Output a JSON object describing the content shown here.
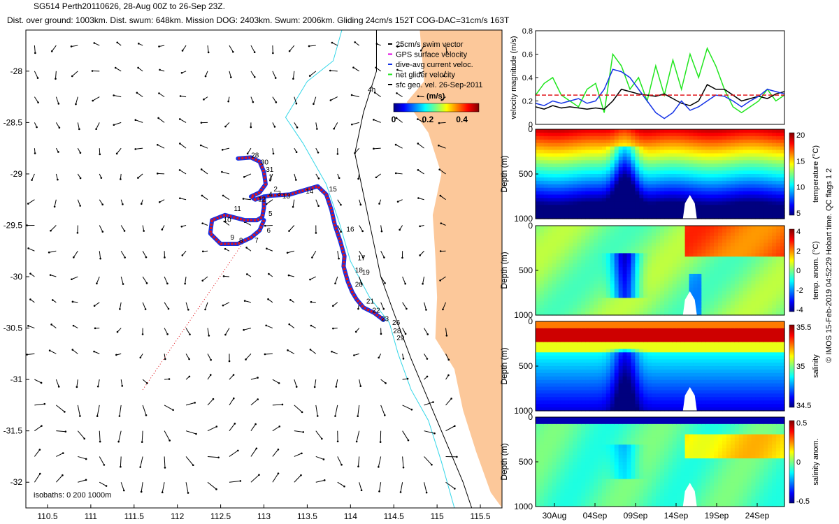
{
  "header": {
    "line1": "SG514 Perth20110626, 28-Aug 00Z to 26-Sep 23Z.",
    "line2": "Dist. over ground: 1003km. Dist. swum: 648km. Mission DOG: 2403km. Swum: 2006km. Gliding 24cm/s 152T COG-DAC=31cm/s 163T"
  },
  "credit": "© IMOS 15-Feb-2019 04:52:29 Hobart time. QC flags 1 2",
  "colors": {
    "land": "#fcc89a",
    "shelf": "#32d6e8",
    "red": "#e0141a",
    "blue": "#1432e6",
    "green": "#20e61e"
  },
  "chart_data": [
    {
      "type": "scatter",
      "panel": "map",
      "xlim": [
        110.25,
        115.75
      ],
      "ylim": [
        -32.25,
        -27.6
      ],
      "xticks": [
        "110.5",
        "111",
        "111.5",
        "112",
        "112.5",
        "113",
        "113.5",
        "114",
        "114.5",
        "115",
        "115.5"
      ],
      "yticks": [
        "-28",
        "-28.5",
        "-29",
        "-29.5",
        "-30",
        "-30.5",
        "-31",
        "-31.5",
        "-32"
      ],
      "legend": [
        "25cm/s swim vector",
        "GPS surface velocity",
        "dive-avg current veloc.",
        "net glider velocity",
        "sfc geo. vel. 26-Sep-2011"
      ],
      "colorbar": {
        "title": "(m/s)",
        "ticks": [
          "0",
          "0.2",
          "0.4"
        ],
        "range": [
          0,
          0.5
        ]
      },
      "isobath_label": "isobaths: 0   200  1000m",
      "annotation": "4h",
      "track": [
        [
          112.7,
          -28.85
        ],
        [
          112.85,
          -28.84
        ],
        [
          112.95,
          -28.88
        ],
        [
          113.0,
          -28.98
        ],
        [
          113.02,
          -29.1
        ],
        [
          112.95,
          -29.18
        ],
        [
          112.85,
          -29.22
        ],
        [
          112.9,
          -29.25
        ],
        [
          113.0,
          -29.22
        ],
        [
          113.1,
          -29.21
        ],
        [
          113.3,
          -29.2
        ],
        [
          113.5,
          -29.15
        ],
        [
          113.62,
          -29.12
        ],
        [
          113.72,
          -29.2
        ],
        [
          113.78,
          -29.35
        ],
        [
          113.82,
          -29.5
        ],
        [
          113.88,
          -29.65
        ],
        [
          113.93,
          -29.8
        ],
        [
          113.92,
          -29.9
        ],
        [
          113.97,
          -30.05
        ],
        [
          114.02,
          -30.15
        ],
        [
          114.07,
          -30.22
        ],
        [
          114.15,
          -30.3
        ],
        [
          114.27,
          -30.35
        ],
        [
          114.38,
          -30.42
        ]
      ],
      "track_loop": [
        [
          113.0,
          -29.22
        ],
        [
          113.0,
          -29.33
        ],
        [
          112.98,
          -29.42
        ],
        [
          112.92,
          -29.45
        ],
        [
          112.78,
          -29.45
        ],
        [
          112.55,
          -29.4
        ],
        [
          112.4,
          -29.45
        ],
        [
          112.38,
          -29.58
        ],
        [
          112.5,
          -29.68
        ],
        [
          112.7,
          -29.68
        ],
        [
          112.85,
          -29.62
        ],
        [
          112.95,
          -29.55
        ],
        [
          113.0,
          -29.45
        ]
      ],
      "dive_labels": [
        {
          "t": "28",
          "x": 112.82,
          "y": -28.84
        },
        {
          "t": "30",
          "x": 112.93,
          "y": -28.91
        },
        {
          "t": "31",
          "x": 112.99,
          "y": -28.98
        },
        {
          "t": "1",
          "x": 113.02,
          "y": -29.05
        },
        {
          "t": "2",
          "x": 113.08,
          "y": -29.17
        },
        {
          "t": "3",
          "x": 113.12,
          "y": -29.21
        },
        {
          "t": "13",
          "x": 113.18,
          "y": -29.24
        },
        {
          "t": "14",
          "x": 113.45,
          "y": -29.19
        },
        {
          "t": "15",
          "x": 113.72,
          "y": -29.17
        },
        {
          "t": "16",
          "x": 113.92,
          "y": -29.56
        },
        {
          "t": "17",
          "x": 114.05,
          "y": -29.84
        },
        {
          "t": "18",
          "x": 114.02,
          "y": -29.96
        },
        {
          "t": "19",
          "x": 114.1,
          "y": -29.98
        },
        {
          "t": "20",
          "x": 114.02,
          "y": -30.1
        },
        {
          "t": "21",
          "x": 114.15,
          "y": -30.26
        },
        {
          "t": "22",
          "x": 114.22,
          "y": -30.35
        },
        {
          "t": "23",
          "x": 114.32,
          "y": -30.43
        },
        {
          "t": "26",
          "x": 114.45,
          "y": -30.47
        },
        {
          "t": "28",
          "x": 114.46,
          "y": -30.55
        },
        {
          "t": "29",
          "x": 114.5,
          "y": -30.62
        },
        {
          "t": "4",
          "x": 113.02,
          "y": -29.22
        },
        {
          "t": "5",
          "x": 113.02,
          "y": -29.41
        },
        {
          "t": "6",
          "x": 113.0,
          "y": -29.57
        },
        {
          "t": "7",
          "x": 112.86,
          "y": -29.67
        },
        {
          "t": "8",
          "x": 112.68,
          "y": -29.67
        },
        {
          "t": "9",
          "x": 112.58,
          "y": -29.64
        },
        {
          "t": "10",
          "x": 112.5,
          "y": -29.47
        },
        {
          "t": "11",
          "x": 112.62,
          "y": -29.36
        },
        {
          "t": "12",
          "x": 112.9,
          "y": -29.27
        }
      ]
    },
    {
      "type": "line",
      "panel": "velocity",
      "ylabel": "velocity magnitude (m/s)",
      "ylim": [
        0,
        0.8
      ],
      "yticks": [
        "0",
        "0.2",
        "0.4",
        "0.6",
        "0.8"
      ],
      "x": [
        0,
        1,
        2,
        3,
        4,
        5,
        6,
        7,
        8,
        9,
        10,
        11,
        12,
        13,
        14,
        15,
        16,
        17,
        18,
        19,
        20,
        21,
        22,
        23,
        24,
        25,
        26,
        27,
        28,
        29
      ],
      "series": [
        {
          "values": [
            0.15,
            0.13,
            0.16,
            0.14,
            0.15,
            0.14,
            0.13,
            0.14,
            0.13,
            0.2,
            0.3,
            0.28,
            0.26,
            0.25,
            0.24,
            0.26,
            0.22,
            0.18,
            0.16,
            0.2,
            0.34,
            0.3,
            0.3,
            0.25,
            0.2,
            0.22,
            0.24,
            0.22,
            0.26,
            0.28
          ]
        },
        {
          "values": [
            0.18,
            0.16,
            0.2,
            0.18,
            0.2,
            0.22,
            0.18,
            0.2,
            0.3,
            0.47,
            0.45,
            0.4,
            0.3,
            0.2,
            0.1,
            0.05,
            0.1,
            0.2,
            0.12,
            0.15,
            0.2,
            0.25,
            0.24,
            0.2,
            0.15,
            0.2,
            0.24,
            0.3,
            0.28,
            0.26
          ]
        },
        {
          "values": [
            0.25,
            0.35,
            0.4,
            0.25,
            0.2,
            0.15,
            0.3,
            0.35,
            0.1,
            0.6,
            0.5,
            0.3,
            0.4,
            0.2,
            0.5,
            0.25,
            0.55,
            0.3,
            0.6,
            0.4,
            0.65,
            0.5,
            0.3,
            0.15,
            0.1,
            0.15,
            0.2,
            0.3,
            0.2,
            0.25
          ]
        },
        {
          "values": [
            0.25,
            0.25,
            0.25,
            0.25,
            0.25,
            0.25,
            0.25,
            0.25,
            0.25,
            0.25,
            0.25,
            0.25,
            0.25,
            0.25,
            0.25,
            0.25,
            0.25,
            0.25,
            0.25,
            0.25,
            0.25,
            0.25,
            0.25,
            0.25,
            0.25,
            0.25,
            0.25,
            0.25,
            0.25,
            0.25
          ]
        }
      ]
    },
    {
      "type": "heatmap",
      "panel": "temperature",
      "ylabel": "Depth (m)",
      "yticks": [
        "0",
        "500",
        "1000"
      ],
      "colorbar_label": "temperature (°C)",
      "colorbar_ticks": [
        "5",
        "10",
        "15",
        "20"
      ]
    },
    {
      "type": "heatmap",
      "panel": "temp_anom",
      "ylabel": "Depth (m)",
      "yticks": [
        "0",
        "500",
        "1000"
      ],
      "colorbar_label": "temp. anom. (°C)",
      "colorbar_ticks": [
        "-4",
        "-2",
        "0",
        "2",
        "4"
      ]
    },
    {
      "type": "heatmap",
      "panel": "salinity",
      "ylabel": "Depth (m)",
      "yticks": [
        "0",
        "500",
        "1000"
      ],
      "colorbar_label": "salinity",
      "colorbar_ticks": [
        "34.5",
        "35",
        "35.5"
      ]
    },
    {
      "type": "heatmap",
      "panel": "sal_anom",
      "ylabel": "Depth (m)",
      "yticks": [
        "0",
        "500",
        "1000"
      ],
      "colorbar_label": "salinity anom.",
      "colorbar_ticks": [
        "-0.5",
        "0",
        "0.5"
      ],
      "xticks": [
        "30Aug",
        "04Sep",
        "09Sep",
        "14Sep",
        "19Sep",
        "24Sep"
      ]
    }
  ]
}
